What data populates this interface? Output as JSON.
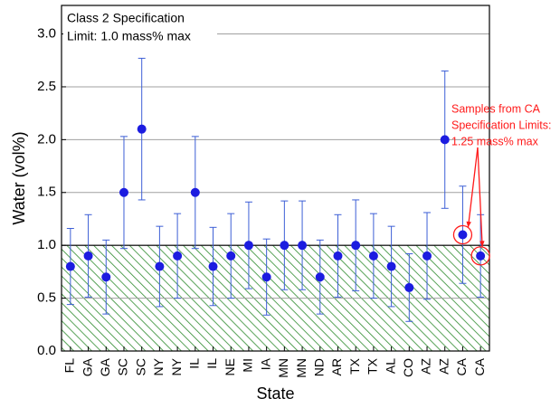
{
  "chart_data": {
    "type": "scatter",
    "box_lines": [
      "Class 2 Specification",
      "Limit: 1.0 mass% max"
    ],
    "y_label": "Water (vol%)",
    "x_label": "State",
    "categories": [
      "FL",
      "GA",
      "GA",
      "SC",
      "SC",
      "NY",
      "NY",
      "IL",
      "IL",
      "NE",
      "MI",
      "IA",
      "MN",
      "MN",
      "ND",
      "AR",
      "TX",
      "TX",
      "AL",
      "CO",
      "AZ",
      "AZ",
      "CA",
      "CA"
    ],
    "values": [
      0.8,
      0.9,
      0.7,
      1.5,
      2.1,
      0.8,
      0.9,
      1.5,
      0.8,
      0.9,
      1.0,
      0.7,
      1.0,
      1.0,
      0.7,
      0.9,
      1.0,
      0.9,
      0.8,
      0.6,
      0.9,
      2.0,
      1.1,
      0.9
    ],
    "errors": [
      0.36,
      0.39,
      0.35,
      0.53,
      0.67,
      0.38,
      0.4,
      0.53,
      0.37,
      0.4,
      0.41,
      0.36,
      0.42,
      0.42,
      0.35,
      0.39,
      0.43,
      0.4,
      0.38,
      0.32,
      0.41,
      0.65,
      0.46,
      0.39
    ],
    "color": "#1c1ce0",
    "error_color": "#3d5fd6",
    "spec_limit": 1.0,
    "hatch_color": "#2e8b2e",
    "ylim": [
      0,
      3.27
    ],
    "yticks": [
      {
        "value": 0,
        "label": "0.0"
      },
      0.5,
      {
        "value": 1,
        "label": "1.0"
      },
      1.5,
      {
        "value": 2,
        "label": "2.0"
      },
      2.5,
      {
        "value": 3,
        "label": "3.0"
      }
    ],
    "grid": true,
    "annotation_lines": [
      "Samples from CA",
      "Specification Limits:",
      "1.25 mass% max"
    ],
    "annotation_color": "#ff1a1a"
  }
}
